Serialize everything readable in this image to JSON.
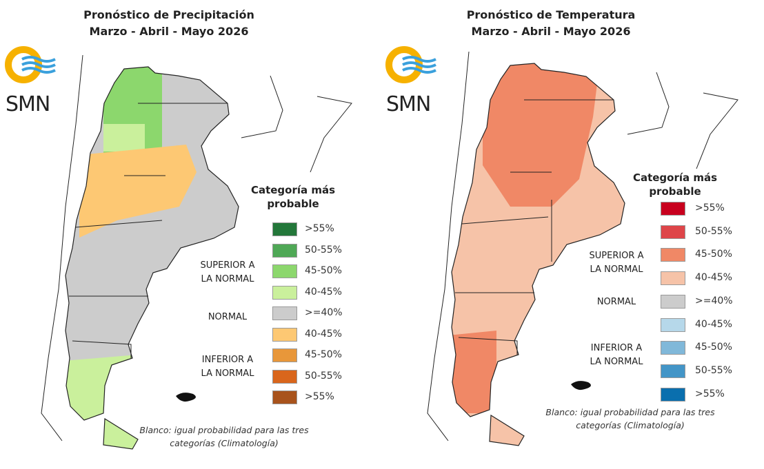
{
  "precipitation": {
    "title_line1": "Pronóstico de Precipitación",
    "title_line2": "Marzo - Abril - Mayo 2026",
    "logo_text": "SMN",
    "legend_title_line1": "Categoría más",
    "legend_title_line2": "probable",
    "categories": {
      "superior_line1": "SUPERIOR A",
      "superior_line2": "LA NORMAL",
      "normal": "NORMAL",
      "inferior_line1": "INFERIOR A",
      "inferior_line2": "LA NORMAL"
    },
    "legend": [
      {
        "label": ">55%",
        "color": "#23773a"
      },
      {
        "label": "50-55%",
        "color": "#4fa856"
      },
      {
        "label": "45-50%",
        "color": "#8cd76d"
      },
      {
        "label": "40-45%",
        "color": "#caf09c"
      },
      {
        "label": ">=40%",
        "color": "#cccccc"
      },
      {
        "label": "40-45%",
        "color": "#fdc873"
      },
      {
        "label": "45-50%",
        "color": "#e8973a"
      },
      {
        "label": "50-55%",
        "color": "#d9661c"
      },
      {
        "label": ">55%",
        "color": "#a8531c"
      }
    ],
    "footnote_line1": "Blanco: igual probabilidad para las tres",
    "footnote_line2": "categorías (Climatología)"
  },
  "temperature": {
    "title_line1": "Pronóstico de Temperatura",
    "title_line2": "Marzo - Abril - Mayo 2026",
    "logo_text": "SMN",
    "legend_title_line1": "Categoría más",
    "legend_title_line2": "probable",
    "categories": {
      "superior_line1": "SUPERIOR A",
      "superior_line2": "LA NORMAL",
      "normal": "NORMAL",
      "inferior_line1": "INFERIOR A",
      "inferior_line2": "LA NORMAL"
    },
    "legend": [
      {
        "label": ">55%",
        "color": "#c8001e"
      },
      {
        "label": "50-55%",
        "color": "#de4549"
      },
      {
        "label": "45-50%",
        "color": "#f08866"
      },
      {
        "label": "40-45%",
        "color": "#f6c3a8"
      },
      {
        "label": ">=40%",
        "color": "#cccccc"
      },
      {
        "label": "40-45%",
        "color": "#b6d8ea"
      },
      {
        "label": "45-50%",
        "color": "#80b8d9"
      },
      {
        "label": "50-55%",
        "color": "#4395c7"
      },
      {
        "label": ">55%",
        "color": "#0a6fae"
      }
    ],
    "footnote_line1": "Blanco: igual probabilidad para las tres",
    "footnote_line2": "categorías (Climatología)"
  }
}
